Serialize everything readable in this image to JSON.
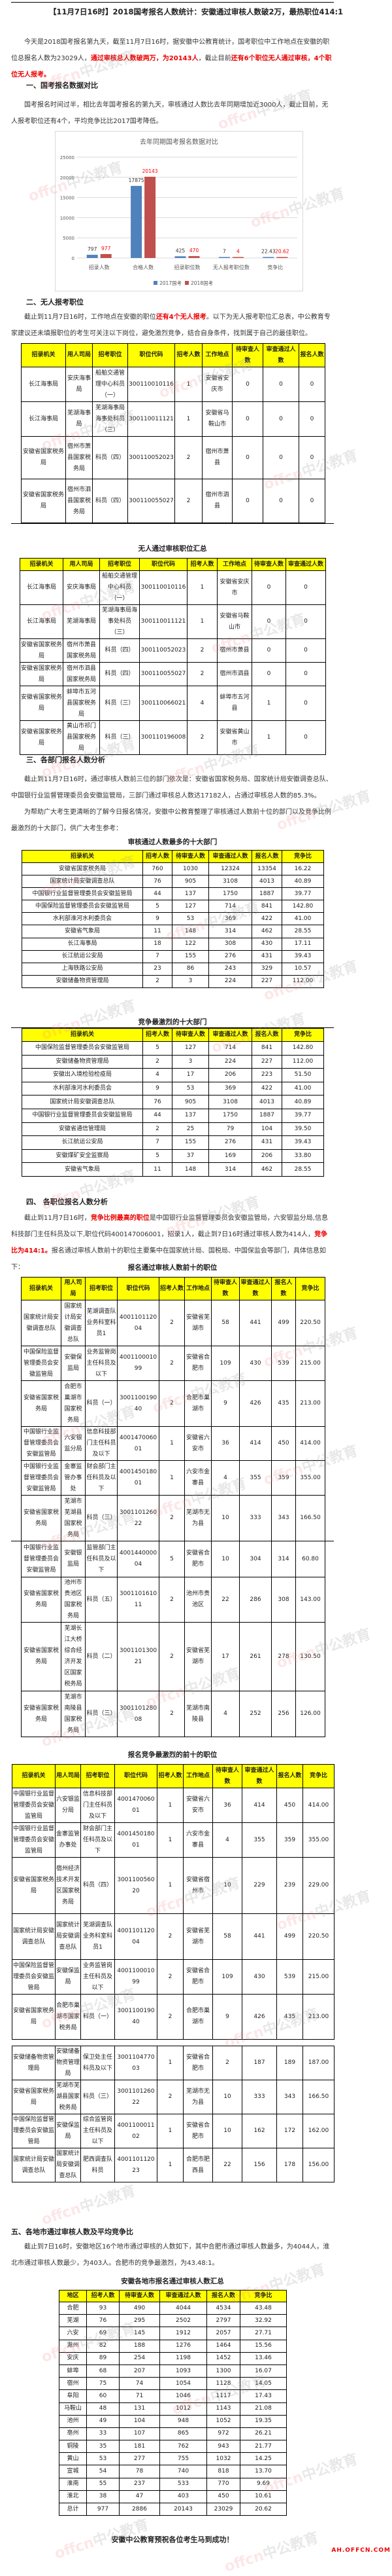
{
  "title": "【11月7日16时】2018国考报名人数统计：安徽通过审核人数破2万，最热职位414:1",
  "p1": [
    "今天是2018国考报名第九天，截至11月7日16时，据安徽中公教育统计，国考职位中工作地点在安徽的职位总报名人数为23029人，",
    "通过审核总人数破两万，为20143人",
    "，截止目前",
    "还有6个职位无人通过审核，4个职位无人报考。"
  ],
  "h1": "一、国考报名数据对比",
  "p2": "国考报名时间过半，相比去年国考报名的第九天，审核通过人数比去年同期增加近3000人，截止目前，无人报考职位还有4个，平均竞争比比2017国考降低。",
  "chart_data": {
    "type": "bar",
    "title": "去年同期国考报名数据对比",
    "categories": [
      "招录人数",
      "合格人数",
      "招录职位数",
      "无人报考职位数",
      "竞争比"
    ],
    "series": [
      {
        "name": "2017国考",
        "color": "#4f81bd",
        "values": [
          797,
          17875,
          425,
          7,
          22.43
        ]
      },
      {
        "name": "2018国考",
        "color": "#c0504d",
        "values": [
          977,
          20143,
          470,
          4,
          20.62
        ]
      }
    ],
    "ylim": [
      0,
      25000
    ],
    "yticks": [
      0,
      5000,
      10000,
      15000,
      20000,
      25000
    ],
    "grid": true,
    "legend": "bottom",
    "label_colors": [
      "#333333",
      "#ff0000"
    ]
  },
  "h2": "二、无人报考职位",
  "p3": [
    "截止到11月7日16时，工作地点在安徽的职位",
    "还有4个无人报考",
    "。以下为无人报考职位汇总表，中公教育专家建议还未填报职位的考生可关注以下岗位，避免激烈竞争，结合自身条件，找到属于自己的最佳职位。"
  ],
  "tables": {
    "noapply": {
      "header": [
        "招录机关",
        "用人司局",
        "招考职位",
        "职位代码",
        "招考人数",
        "工作地点",
        "待审查人数",
        "审查通过人数",
        "报名人数"
      ],
      "rows": [
        [
          "长江海事局",
          "安庆海事局",
          "船舶交通管理中心科员（一）",
          "300110010116",
          "1",
          "安徽省安庆市",
          "0",
          "0",
          "0"
        ],
        [
          "长江海事局",
          "芜湖海事局",
          "芜湖海事局海事处科员（三）",
          "300110011121",
          "1",
          "安徽省马鞍山市",
          "0",
          "0",
          "0"
        ],
        [
          "安徽省国家税务局",
          "宿州市萧县国家税务局",
          "科员（四）",
          "300110052023",
          "2",
          "宿州市萧县",
          "0",
          "0",
          "0"
        ],
        [
          "安徽省国家税务局",
          "宿州市泗县国家税务局",
          "科员（四）",
          "300110055027",
          "2",
          "宿州市泗县",
          "0",
          "0",
          "0"
        ]
      ]
    },
    "nopass": {
      "caption": "无人通过审核职位汇总",
      "header": [
        "招录机关",
        "用人司局",
        "招考职位",
        "职位代码",
        "招考人数",
        "工作地点",
        "待审查人数",
        "审查通过人数"
      ],
      "rows": [
        [
          "长江海事局",
          "安庆海事局",
          "船舶交通管理中心科员（一）",
          "300110010116",
          "1",
          "安徽省安庆市",
          "0",
          "0"
        ],
        [
          "长江海事局",
          "芜湖海事局",
          "芜湖海事局海事处科员（三）",
          "300110011121",
          "1",
          "安徽省马鞍山市",
          "0",
          "0"
        ],
        [
          "安徽省国家税务局",
          "宿州市萧县国家税务局",
          "科员（四）",
          "300110052023",
          "2",
          "宿州市萧县",
          "0",
          "0"
        ],
        [
          "安徽省国家税务局",
          "宿州市泗县国家税务局",
          "科员（四）",
          "300110055027",
          "2",
          "宿州市泗县",
          "0",
          "0"
        ],
        [
          "安徽省国家税务局",
          "蚌埠市五河县国家税务局",
          "科员（三）",
          "300110066021",
          "4",
          "蚌埠市五河县",
          "1",
          "0"
        ],
        [
          "安徽省国家税务局",
          "黄山市祁门县国家税务局",
          "科员（三）",
          "300110196008",
          "2",
          "安徽省黄山市",
          "1",
          "0"
        ]
      ]
    },
    "deptpass": {
      "caption": "审核通过人数最多的十大部门",
      "header": [
        "招录机关",
        "招考人数",
        "待审查人数",
        "审查通过人数",
        "报名人数",
        "竞争比"
      ],
      "rows": [
        [
          "安徽省国家税务局",
          "760",
          "1030",
          "12324",
          "13354",
          "16.22"
        ],
        [
          "国家统计局安徽调查总队",
          "76",
          "905",
          "3108",
          "4013",
          "40.89"
        ],
        [
          "中国银行业监督管理委员会安徽监管局",
          "44",
          "137",
          "1750",
          "1887",
          "39.77"
        ],
        [
          "中国保险监督管理委员会安徽监管局",
          "5",
          "127",
          "714",
          "841",
          "142.80"
        ],
        [
          "水利部淮河水利委员会",
          "9",
          "53",
          "369",
          "422",
          "41.00"
        ],
        [
          "安徽省气象局",
          "11",
          "148",
          "314",
          "462",
          "28.55"
        ],
        [
          "长江海事局",
          "18",
          "122",
          "308",
          "430",
          "17.11"
        ],
        [
          "长江航运公安局",
          "7",
          "155",
          "276",
          "431",
          "39.43"
        ],
        [
          "上海铁路公安局",
          "23",
          "86",
          "243",
          "329",
          "10.57"
        ],
        [
          "安徽储备物资管理局",
          "2",
          "3",
          "224",
          "227",
          "112.00"
        ]
      ]
    },
    "deptcomp": {
      "caption": "竞争最激烈的十大部门",
      "header": [
        "招录机关",
        "招考人数",
        "待审查人数",
        "审查通过人数",
        "报名人数",
        "竞争比"
      ],
      "rows": [
        [
          "中国保险监督管理委员会安徽监管局",
          "5",
          "127",
          "714",
          "841",
          "142.80"
        ],
        [
          "安徽储备物资管理局",
          "2",
          "3",
          "224",
          "227",
          "112.00"
        ],
        [
          "安徽出入境检验检疫局",
          "4",
          "17",
          "206",
          "223",
          "51.50"
        ],
        [
          "水利部淮河水利委员会",
          "9",
          "53",
          "369",
          "422",
          "41.00"
        ],
        [
          "国家统计局安徽调查总队",
          "76",
          "905",
          "3108",
          "4013",
          "40.89"
        ],
        [
          "中国银行业监督管理委员会安徽监管局",
          "44",
          "137",
          "1750",
          "1887",
          "39.77"
        ],
        [
          "安徽省通信管理局",
          "2",
          "25",
          "79",
          "104",
          "39.50"
        ],
        [
          "长江航运公安局",
          "7",
          "155",
          "276",
          "431",
          "39.43"
        ],
        [
          "安徽煤矿安全监察局",
          "5",
          "37",
          "169",
          "206",
          "33.80"
        ],
        [
          "安徽省气象局",
          "11",
          "148",
          "314",
          "462",
          "28.55"
        ]
      ]
    },
    "pospass": {
      "caption": "报名通过审核人数前十的职位",
      "header": [
        "招录机关",
        "用人司局",
        "招考职位",
        "职位代码",
        "招考人数",
        "工作地点",
        "待审查人数",
        "审查通过人数",
        "报名人数",
        "竞争比"
      ],
      "rows": [
        [
          "国家统计局安徽调查总队",
          "国家统计局安徽调查总队",
          "芜湖调查队业务科室科员1",
          "400110112004",
          "2",
          "安徽省芜湖市",
          "58",
          "441",
          "499",
          "220.50"
        ],
        [
          "中国保险监督管理委员会安徽监管局",
          "安徽保监局",
          "业务监管岗主任科员及以下",
          "400110001099",
          "2",
          "安徽省合肥市",
          "109",
          "430",
          "539",
          "215.00"
        ],
        [
          "安徽省国家税务局",
          "合肥市巢湖市国家税务局",
          "科员（一）",
          "300110019040",
          "2",
          "合肥市巢湖市",
          "9",
          "426",
          "435",
          "213.00"
        ],
        [
          "中国银行业监督管理委员会安徽监管局",
          "六安银监分局",
          "信息科技部门主任科员及以下",
          "400147006001",
          "1",
          "安徽省六安市",
          "36",
          "414",
          "450",
          "414.00"
        ],
        [
          "中国银行业监督管理委员会安徽监管局",
          "金寨监管办事处",
          "财会部门主任科员及以下",
          "400145018001",
          "1",
          "六安市金寨县",
          "4",
          "355",
          "359",
          "355.00"
        ],
        [
          "安徽省国家税务局",
          "芜湖市芜湖县国家税务局",
          "科员（三）",
          "300110126022",
          "2",
          "芜湖市无为县",
          "10",
          "333",
          "343",
          "166.50"
        ],
        [
          "中国银行业监督管理委员会安徽监管局",
          "安徽银监局",
          "监管部门主任科员及以下",
          "400144000004",
          "5",
          "安徽省合肥市",
          "10",
          "304",
          "314",
          "60.80"
        ],
        [
          "安徽省国家税务局",
          "池州市贵池区国家税务局",
          "科员（五）",
          "300110161011",
          "2",
          "池州市贵池区",
          "22",
          "286",
          "308",
          "143.00"
        ],
        [
          "安徽省国家税务局",
          "芜湖长江大桥综合经济开发区国家税务局",
          "科员（二）",
          "300110130021",
          "2",
          "安徽省芜湖市",
          "17",
          "261",
          "278",
          "130.50"
        ],
        [
          "安徽省国家税务局",
          "芜湖市南陵县国家税务局",
          "科员（三）",
          "300110128008",
          "2",
          "芜湖市南陵县",
          "4",
          "252",
          "256",
          "126.00"
        ]
      ]
    },
    "poscomp": {
      "caption": "报名竞争最激烈的前十的职位",
      "header": [
        "招录机关",
        "用人司局",
        "招考职位",
        "职位代码",
        "招考人数",
        "工作地点",
        "待审查人数",
        "审查通过人数",
        "报名人数",
        "竞争比"
      ],
      "rows": [
        [
          "中国银行业监督管理委员会安徽监管局",
          "六安银监分局",
          "信息科技部门主任科员及以下",
          "400147006001",
          "1",
          "安徽省六安市",
          "36",
          "414",
          "450",
          "414.00"
        ],
        [
          "中国银行业监督管理委员会安徽监管局",
          "金寨监管办事处",
          "财会部门主任科员及以下",
          "400145018001",
          "1",
          "六安市金寨县",
          "4",
          "355",
          "359",
          "355.00"
        ],
        [
          "安徽省国家税务局",
          "宿州经济技术开发区国家税务局",
          "科员（四）",
          "300110056020",
          "1",
          "安徽省宿州市",
          "10",
          "229",
          "239",
          "229.00"
        ],
        [
          "国家统计局安徽调查总队",
          "国家统计局安徽调查总队",
          "芜湖调查队业务科室科员1",
          "400110112004",
          "2",
          "安徽省芜湖市",
          "58",
          "441",
          "499",
          "220.50"
        ],
        [
          "中国保险监督管理委员会安徽监管局",
          "安徽保监局",
          "业务监管岗主任科员及以下",
          "400110001099",
          "2",
          "安徽省合肥市",
          "109",
          "430",
          "539",
          "215.00"
        ],
        [
          "安徽省国家税务局",
          "合肥市巢湖市国家税务局",
          "科员（一）",
          "300110019040",
          "2",
          "合肥市巢湖市",
          "9",
          "426",
          "435",
          "213.00"
        ],
        [
          "安徽储备物资管理局",
          "安徽储备物资管理局",
          "保卫处主任科员及以下",
          "300110477003",
          "1",
          "安徽省合肥市",
          "2",
          "187",
          "189",
          "187.00"
        ],
        [
          "安徽省国家税务局",
          "芜湖市芜湖县国家税务局",
          "科员（三）",
          "300110126022",
          "2",
          "芜湖市无为县",
          "10",
          "333",
          "343",
          "166.50"
        ],
        [
          "中国保险监督管理委员会安徽监管局",
          "安徽保监局",
          "综合监管岗主任科员及以下",
          "400110001102",
          "1",
          "安徽省合肥市",
          "10",
          "162",
          "172",
          "162.00"
        ],
        [
          "国家统计局安徽调查总队",
          "国家统计局安徽调查总队",
          "肥西调查队科员",
          "400110112023",
          "1",
          "合肥市肥西县",
          "22",
          "156",
          "178",
          "156.00"
        ]
      ]
    },
    "city": {
      "caption": "安徽各地市报名通过审核人数汇总",
      "header": [
        "地区",
        "招考人数",
        "待审查人数",
        "审查通过人数",
        "报名人数",
        "竞争比"
      ],
      "rows": [
        [
          "合肥",
          "93",
          "490",
          "4044",
          "4534",
          "43.48"
        ],
        [
          "芜湖",
          "76",
          "295",
          "2502",
          "2797",
          "32.92"
        ],
        [
          "六安",
          "69",
          "145",
          "1912",
          "2057",
          "27.71"
        ],
        [
          "滁州",
          "82",
          "188",
          "1276",
          "1464",
          "15.56"
        ],
        [
          "安庆",
          "89",
          "254",
          "1198",
          "1452",
          "13.46"
        ],
        [
          "蚌埠",
          "68",
          "207",
          "1093",
          "1300",
          "16.07"
        ],
        [
          "宿州",
          "75",
          "74",
          "1054",
          "1128",
          "14.05"
        ],
        [
          "阜阳",
          "60",
          "71",
          "1046",
          "1117",
          "17.43"
        ],
        [
          "马鞍山",
          "48",
          "131",
          "1012",
          "1143",
          "21.08"
        ],
        [
          "池州",
          "49",
          "104",
          "948",
          "1052",
          "19.35"
        ],
        [
          "亳州",
          "33",
          "107",
          "865",
          "972",
          "26.21"
        ],
        [
          "铜陵",
          "35",
          "181",
          "762",
          "943",
          "21.77"
        ],
        [
          "黄山",
          "53",
          "277",
          "755",
          "1032",
          "14.25"
        ],
        [
          "宣城",
          "54",
          "78",
          "740",
          "818",
          "13.70"
        ],
        [
          "淮南",
          "55",
          "237",
          "533",
          "770",
          "9.69"
        ],
        [
          "淮北",
          "38",
          "47",
          "403",
          "450",
          "10.61"
        ],
        [
          "总计",
          "977",
          "2886",
          "20143",
          "23029",
          "20.62"
        ]
      ]
    }
  },
  "h3": "三、各部门报名人数分析",
  "p4": "截止到11月7日16时，通过审核人数前三位的部门依次是：安徽省国家税务局、国家统计局安徽调查总队、中国银行业监督管理委员会安徽监管局，三部门通过审核总人数达17182人，占通过审核总人数的85.3%。",
  "p5": "为帮助广大考生更清晰的了解今日报名情况，安徽中公教育整理了审核通过人数前十位的部门以及竞争比例最激烈的十大部门，供广大考生参考：",
  "h4": "四、 各职位报名人数分析",
  "p6": [
    "截止到11月7日16时，",
    "竞争比例最高的职位",
    "是中国银行业监督管理委员会安徽监管局，六安银监分局,信息科技部门主任科员及以下,职位代码400147006001，招录1人，截止到7日16时通过审核人数为414人，",
    "竞争比为414:1。",
    "报名通过审核人数前十的职位主要集中在国家统计局、国税局、中国保监会等部门，具体信息如下："
  ],
  "h5": "五、各地市通过审核人数及平均竞争比",
  "p7": "截止到7日16时，安徽地区16个地市通过审核的人数如下，其中合肥市通过审核人数最多，为4044人，淮北市通过审核人数最少，为403人。合肥市的竞争最激烈，为43.48:1。",
  "footer": "安徽中公教育预祝各位考生马到成功！",
  "site": "AH.OFFCN.COM",
  "watermark": [
    "offcn",
    "中公教育"
  ]
}
